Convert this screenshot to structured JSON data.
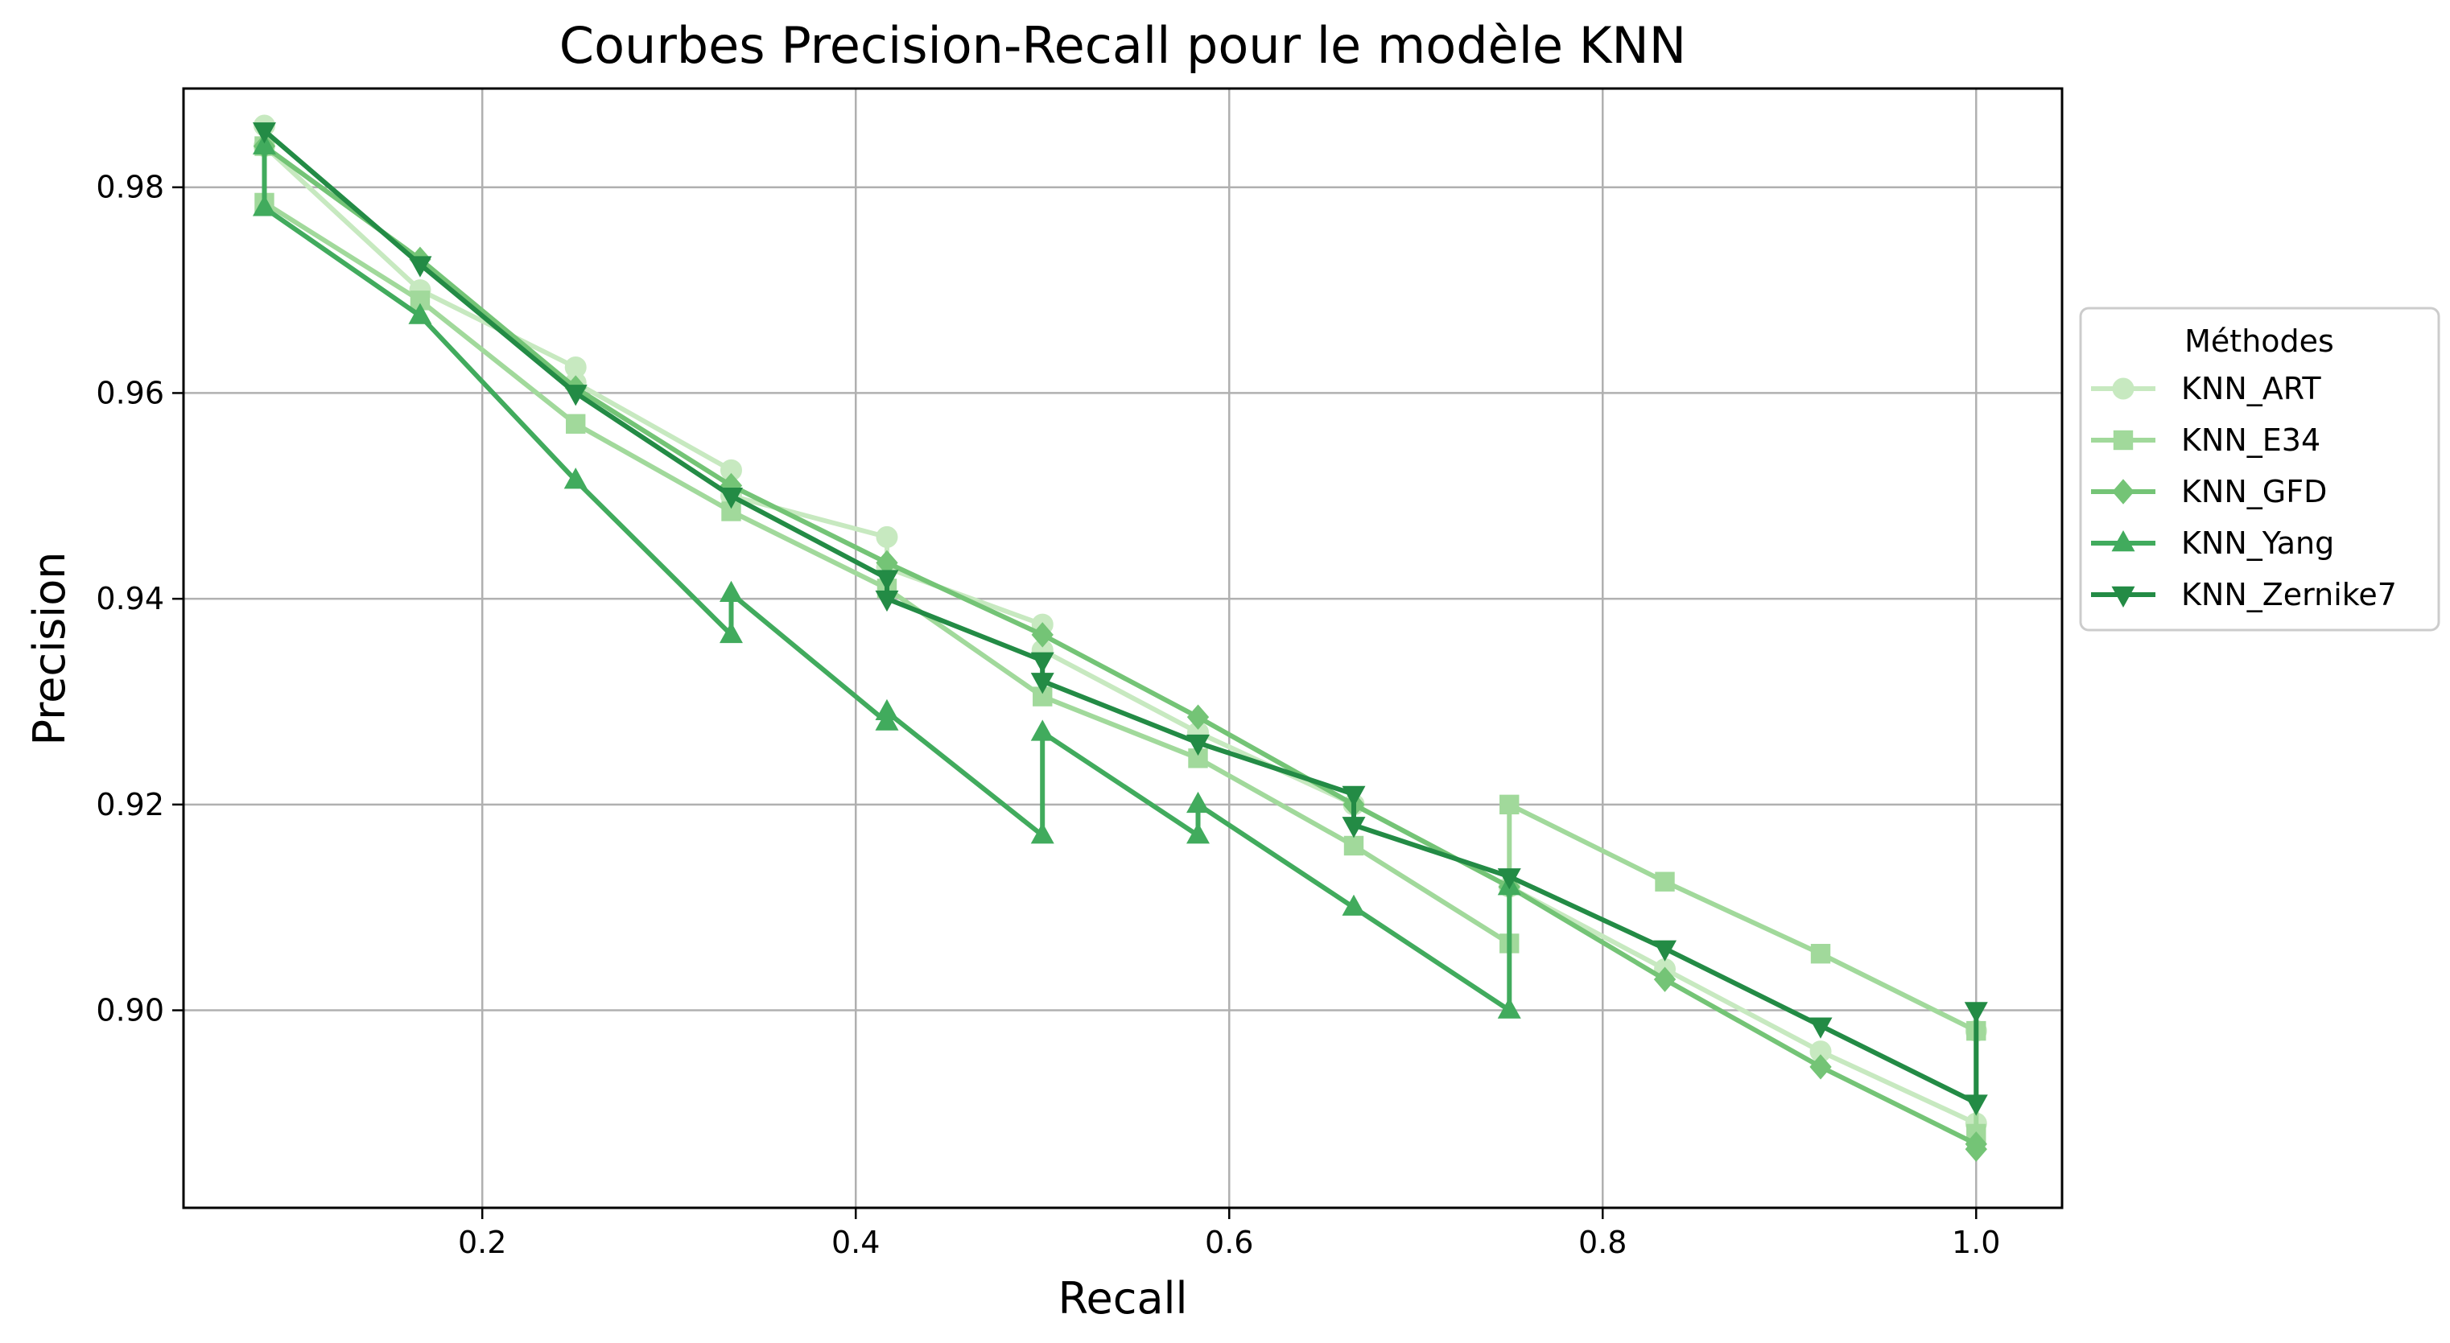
{
  "chart_data": {
    "type": "line",
    "title": "Courbes Precision-Recall pour le modèle KNN",
    "xlabel": "Recall",
    "ylabel": "Precision",
    "xlim": [
      0.04,
      1.046
    ],
    "ylim": [
      0.8808,
      0.9896
    ],
    "xticks": [
      0.2,
      0.4,
      0.6,
      0.8,
      1.0
    ],
    "xtick_labels": [
      "0.2",
      "0.4",
      "0.6",
      "0.8",
      "1.0"
    ],
    "yticks": [
      0.9,
      0.92,
      0.94,
      0.96,
      0.98
    ],
    "ytick_labels": [
      "0.90",
      "0.92",
      "0.94",
      "0.96",
      "0.98"
    ],
    "grid": true,
    "legend": {
      "title": "Méthodes",
      "placement": "outside-right"
    },
    "series": [
      {
        "name": "KNN_ART",
        "color": "#c7e9c0",
        "marker": "circle",
        "points": [
          [
            0.0833,
            0.986
          ],
          [
            0.0833,
            0.984
          ],
          [
            0.1667,
            0.97
          ],
          [
            0.25,
            0.9625
          ],
          [
            0.25,
            0.961
          ],
          [
            0.3333,
            0.9525
          ],
          [
            0.3333,
            0.95
          ],
          [
            0.4167,
            0.946
          ],
          [
            0.4167,
            0.943
          ],
          [
            0.5,
            0.9375
          ],
          [
            0.5,
            0.935
          ],
          [
            0.5833,
            0.927
          ],
          [
            0.6667,
            0.92
          ],
          [
            0.75,
            0.912
          ],
          [
            0.8333,
            0.904
          ],
          [
            0.9167,
            0.896
          ],
          [
            1.0,
            0.889
          ],
          [
            1.0,
            0.898
          ]
        ]
      },
      {
        "name": "KNN_E34",
        "color": "#a1d99b",
        "marker": "square",
        "points": [
          [
            0.0833,
            0.984
          ],
          [
            0.0833,
            0.9785
          ],
          [
            0.1667,
            0.969
          ],
          [
            0.25,
            0.957
          ],
          [
            0.3333,
            0.9485
          ],
          [
            0.4167,
            0.941
          ],
          [
            0.5,
            0.9305
          ],
          [
            0.5833,
            0.9245
          ],
          [
            0.6667,
            0.916
          ],
          [
            0.75,
            0.9065
          ],
          [
            0.75,
            0.92
          ],
          [
            0.8333,
            0.9125
          ],
          [
            0.9167,
            0.9055
          ],
          [
            1.0,
            0.898
          ],
          [
            1.0,
            0.888
          ]
        ]
      },
      {
        "name": "KNN_GFD",
        "color": "#74c476",
        "marker": "diamond",
        "points": [
          [
            0.0833,
            0.984
          ],
          [
            0.1667,
            0.973
          ],
          [
            0.25,
            0.9605
          ],
          [
            0.3333,
            0.951
          ],
          [
            0.4167,
            0.9435
          ],
          [
            0.5,
            0.9365
          ],
          [
            0.5833,
            0.9285
          ],
          [
            0.6667,
            0.92
          ],
          [
            0.75,
            0.912
          ],
          [
            0.8333,
            0.903
          ],
          [
            0.9167,
            0.8945
          ],
          [
            1.0,
            0.887
          ],
          [
            1.0,
            0.8865
          ]
        ]
      },
      {
        "name": "KNN_Yang",
        "color": "#41ab5d",
        "marker": "triangle-up",
        "points": [
          [
            0.0833,
            0.984
          ],
          [
            0.0833,
            0.978
          ],
          [
            0.1667,
            0.9675
          ],
          [
            0.25,
            0.9515
          ],
          [
            0.3333,
            0.9365
          ],
          [
            0.3333,
            0.9405
          ],
          [
            0.4167,
            0.928
          ],
          [
            0.4167,
            0.929
          ],
          [
            0.5,
            0.917
          ],
          [
            0.5,
            0.927
          ],
          [
            0.5833,
            0.917
          ],
          [
            0.5833,
            0.92
          ],
          [
            0.6667,
            0.91
          ],
          [
            0.75,
            0.9
          ],
          [
            0.75,
            0.912
          ]
        ]
      },
      {
        "name": "KNN_Zernike7",
        "color": "#238b45",
        "marker": "triangle-down",
        "points": [
          [
            0.0833,
            0.9855
          ],
          [
            0.1667,
            0.9725
          ],
          [
            0.25,
            0.96
          ],
          [
            0.3333,
            0.95
          ],
          [
            0.4167,
            0.942
          ],
          [
            0.4167,
            0.94
          ],
          [
            0.5,
            0.934
          ],
          [
            0.5,
            0.932
          ],
          [
            0.5833,
            0.926
          ],
          [
            0.6667,
            0.921
          ],
          [
            0.6667,
            0.918
          ],
          [
            0.75,
            0.913
          ],
          [
            0.8333,
            0.906
          ],
          [
            0.9167,
            0.8985
          ],
          [
            1.0,
            0.891
          ],
          [
            1.0,
            0.9
          ]
        ]
      }
    ]
  }
}
